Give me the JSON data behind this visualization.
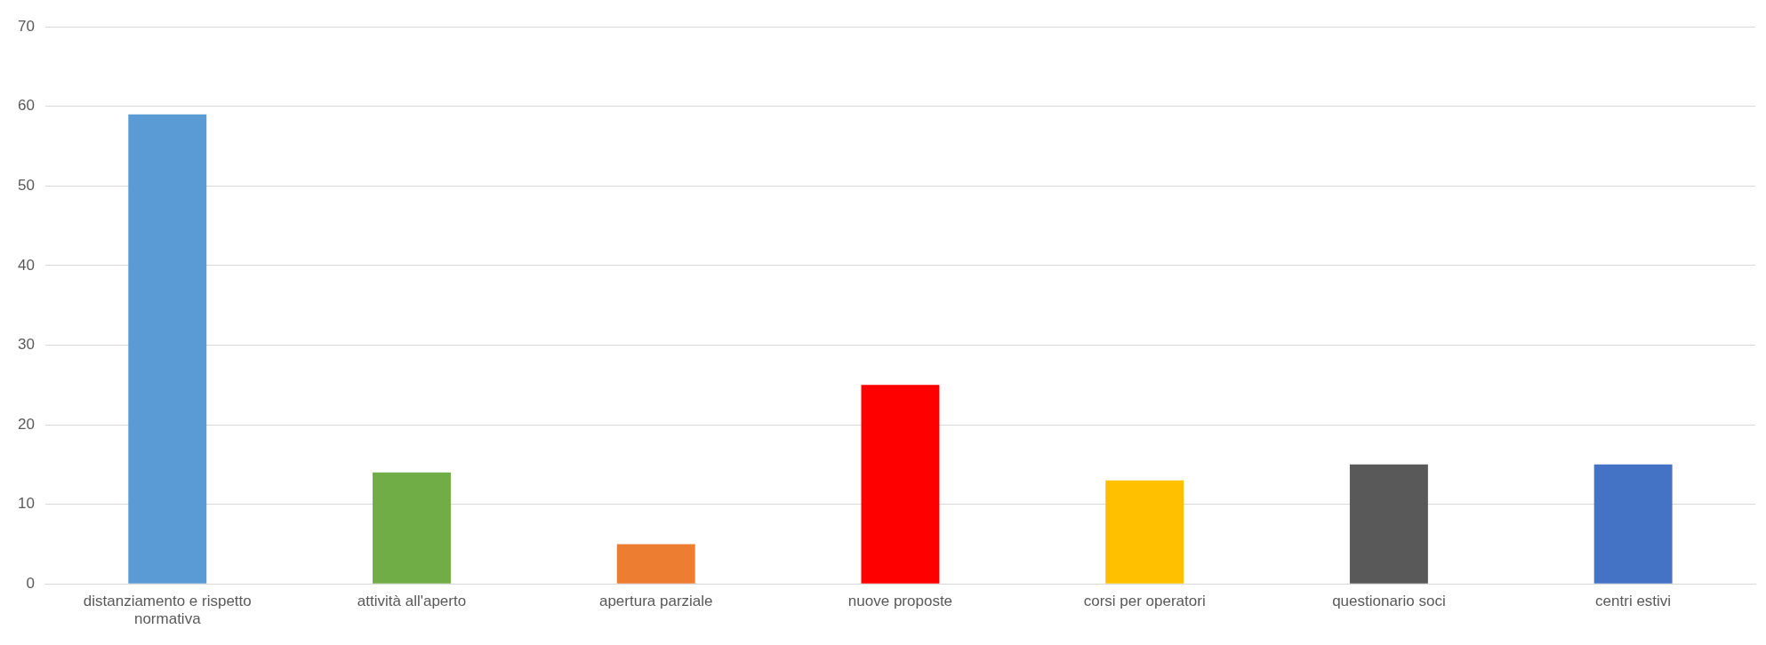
{
  "chart_data": {
    "type": "bar",
    "categories": [
      "distanziamento e rispetto normativa",
      "attività all'aperto",
      "apertura parziale",
      "nuove proposte",
      "corsi per operatori",
      "questionario soci",
      "centri estivi"
    ],
    "values": [
      59,
      14,
      5,
      25,
      13,
      15,
      15
    ],
    "colors": [
      "#5b9bd5",
      "#70ad47",
      "#ed7d31",
      "#ff0000",
      "#ffc000",
      "#595959",
      "#4472c4"
    ],
    "ylim": [
      0,
      70
    ],
    "yticks": [
      0,
      10,
      20,
      30,
      40,
      50,
      60,
      70
    ],
    "grid": "y",
    "legend": false
  }
}
